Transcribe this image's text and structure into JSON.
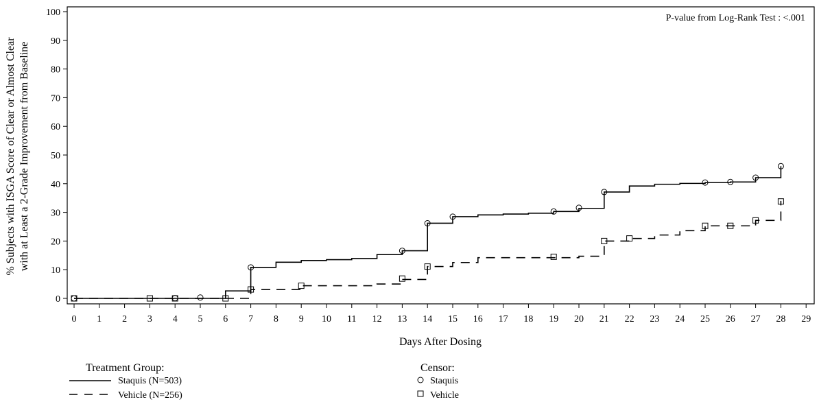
{
  "chart_data": {
    "type": "line",
    "xlabel": "Days After Dosing",
    "ylabel_line1": "% Subjects with ISGA Score of Clear or Almost Clear",
    "ylabel_line2": "with at Least a 2-Grade Improvement from Baseline",
    "annotation": "P-value from Log-Rank Test :  <.001",
    "xlim": [
      0,
      29
    ],
    "ylim": [
      0,
      100
    ],
    "x_ticks": [
      0,
      1,
      2,
      3,
      4,
      5,
      6,
      7,
      8,
      9,
      10,
      11,
      12,
      13,
      14,
      15,
      16,
      17,
      18,
      19,
      20,
      21,
      22,
      23,
      24,
      25,
      26,
      27,
      28,
      29
    ],
    "y_ticks": [
      0,
      10,
      20,
      30,
      40,
      50,
      60,
      70,
      80,
      90,
      100
    ],
    "grid": false,
    "series": [
      {
        "name": "Staquis (N=503)",
        "style": "solid",
        "steps": [
          [
            0,
            0
          ],
          [
            6,
            2.6
          ],
          [
            7,
            10.8
          ],
          [
            8,
            12.6
          ],
          [
            9,
            13.2
          ],
          [
            10,
            13.5
          ],
          [
            11,
            13.9
          ],
          [
            12,
            15.3
          ],
          [
            13,
            16.6
          ],
          [
            14,
            26.2
          ],
          [
            15,
            28.5
          ],
          [
            16,
            29.1
          ],
          [
            17,
            29.4
          ],
          [
            18,
            29.7
          ],
          [
            19,
            30.3
          ],
          [
            20,
            31.4
          ],
          [
            21,
            37.1
          ],
          [
            22,
            39.2
          ],
          [
            23,
            39.8
          ],
          [
            24,
            40.1
          ],
          [
            25,
            40.4
          ],
          [
            26,
            40.6
          ],
          [
            27,
            42.1
          ],
          [
            28,
            46.1
          ]
        ],
        "censor": [
          [
            0,
            0
          ],
          [
            4,
            0.1
          ],
          [
            5,
            0.3
          ],
          [
            7,
            10.8
          ],
          [
            13,
            16.6
          ],
          [
            14,
            26.2
          ],
          [
            15,
            28.5
          ],
          [
            19,
            30.3
          ],
          [
            20,
            31.6
          ],
          [
            21,
            37.1
          ],
          [
            25,
            40.4
          ],
          [
            26,
            40.6
          ],
          [
            27,
            42.1
          ],
          [
            28,
            46.1
          ]
        ]
      },
      {
        "name": "Vehicle (N=256)",
        "style": "dashed",
        "steps": [
          [
            0,
            0
          ],
          [
            7,
            3.1
          ],
          [
            9,
            4.4
          ],
          [
            12,
            5.0
          ],
          [
            13,
            6.6
          ],
          [
            14,
            11.1
          ],
          [
            15,
            12.5
          ],
          [
            16,
            14.2
          ],
          [
            20,
            14.7
          ],
          [
            21,
            20.0
          ],
          [
            22,
            20.9
          ],
          [
            23,
            22.1
          ],
          [
            24,
            23.6
          ],
          [
            25,
            25.3
          ],
          [
            26,
            25.3
          ],
          [
            27,
            27.2
          ],
          [
            28,
            34.0
          ]
        ],
        "censor": [
          [
            0,
            0
          ],
          [
            3,
            0
          ],
          [
            4,
            0
          ],
          [
            6,
            0
          ],
          [
            7,
            3.1
          ],
          [
            9,
            4.4
          ],
          [
            13,
            6.9
          ],
          [
            14,
            11.1
          ],
          [
            19,
            14.5
          ],
          [
            21,
            20.0
          ],
          [
            22,
            20.9
          ],
          [
            25,
            25.3
          ],
          [
            26,
            25.3
          ],
          [
            27,
            27.2
          ],
          [
            28,
            33.8
          ]
        ]
      }
    ],
    "legend": {
      "title": "Treatment Group:",
      "items": [
        "Staquis (N=503)",
        "Vehicle (N=256)"
      ]
    },
    "censor_legend": {
      "title": "Censor:",
      "items": [
        {
          "label": "Staquis",
          "marker": "circle"
        },
        {
          "label": "Vehicle",
          "marker": "square"
        }
      ]
    }
  }
}
